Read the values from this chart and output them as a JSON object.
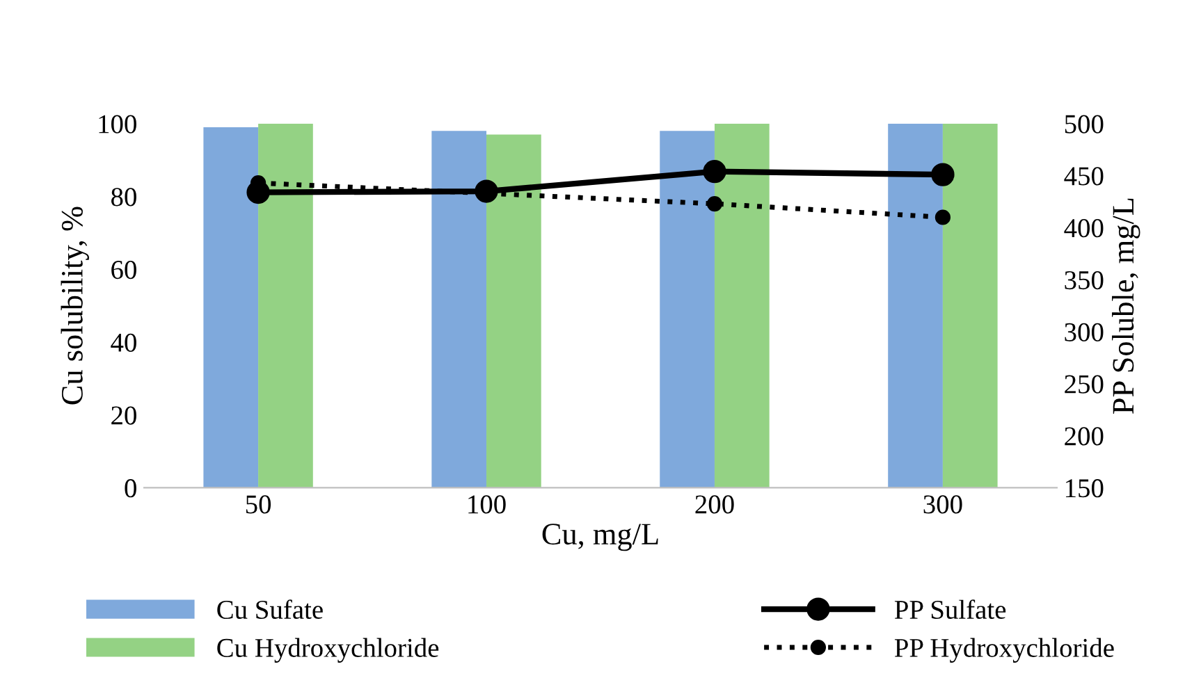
{
  "chart_data": {
    "type": "bar",
    "xlabel": "Cu, mg/L",
    "ylabel": "Cu solubility, %",
    "y2label": "PP Soluble, mg/L",
    "categories": [
      "50",
      "100",
      "200",
      "300"
    ],
    "ylim": [
      0,
      100
    ],
    "yticks": [
      0,
      20,
      40,
      60,
      80,
      100
    ],
    "y2lim": [
      150,
      500
    ],
    "y2ticks": [
      150,
      200,
      250,
      300,
      350,
      400,
      450,
      500
    ],
    "grid": false,
    "legend": "bottom",
    "series": [
      {
        "name": "Cu Sufate",
        "color": "#7fa9dc",
        "values": [
          99,
          98,
          98,
          100
        ]
      },
      {
        "name": "Cu Hydroxychloride",
        "color": "#94d284",
        "values": [
          100,
          97,
          100,
          100
        ]
      },
      {
        "name": "PP Sulfate",
        "type": "line",
        "axis": "y2",
        "color": "#000000",
        "marker": "circle",
        "line_style": "solid",
        "values": [
          434,
          435,
          454,
          451
        ]
      },
      {
        "name": "PP Hydroxychloride",
        "type": "line",
        "axis": "y2",
        "color": "#000000",
        "marker": "circle",
        "line_style": "dotted",
        "values": [
          443,
          433,
          423,
          410
        ]
      }
    ]
  }
}
